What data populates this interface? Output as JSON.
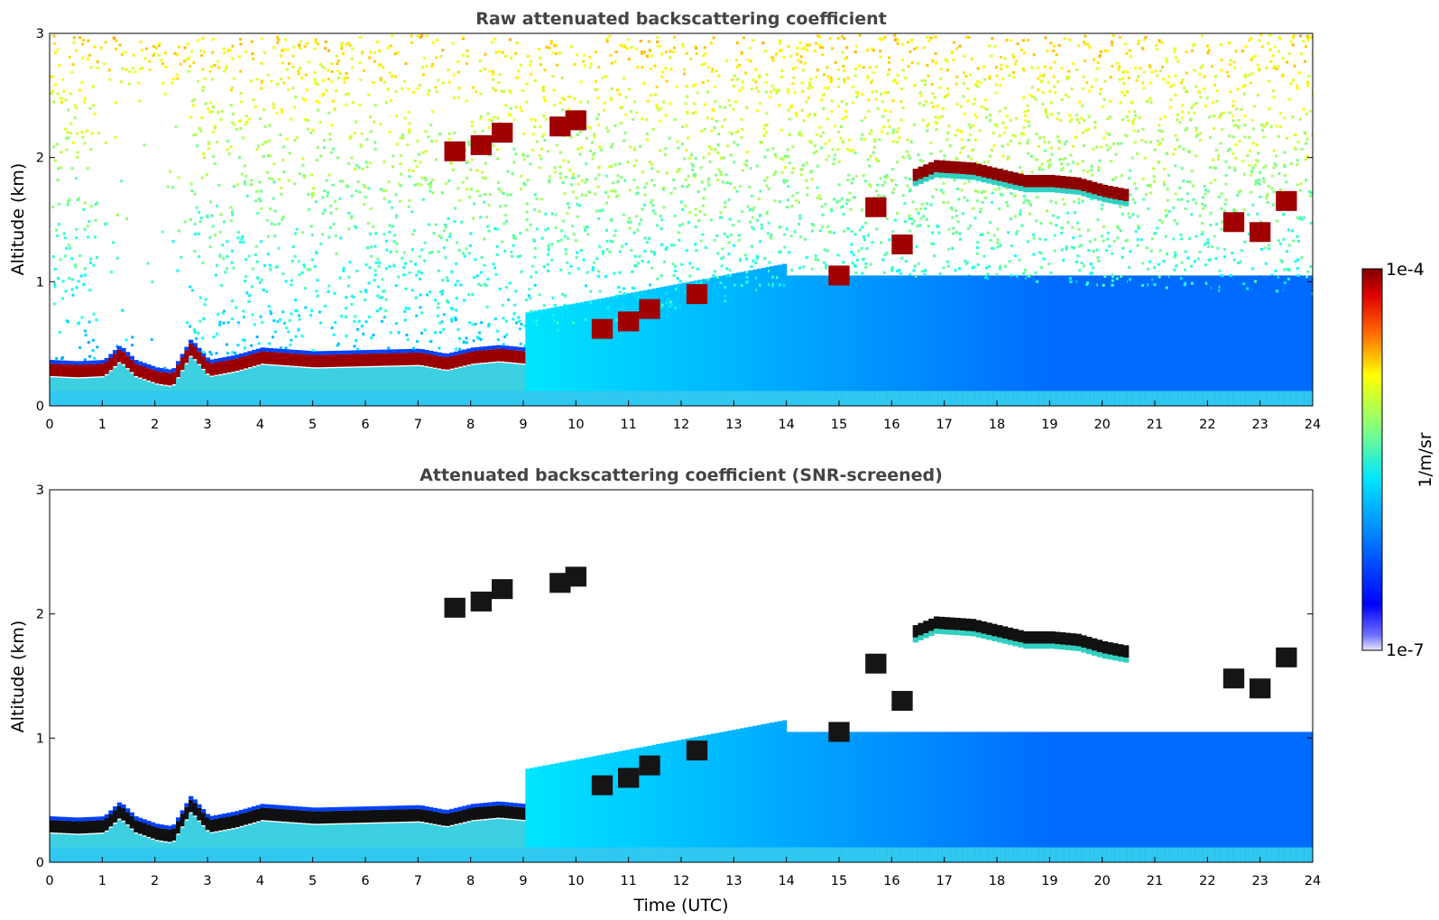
{
  "chart_data": [
    {
      "type": "heatmap",
      "title": "Raw attenuated backscattering coefficient",
      "xlabel": "",
      "ylabel": "Altitude (km)",
      "xlim": [
        0,
        24
      ],
      "ylim": [
        0,
        3
      ],
      "xticks": [
        "0",
        "1",
        "2",
        "3",
        "4",
        "5",
        "6",
        "7",
        "8",
        "9",
        "10",
        "11",
        "12",
        "13",
        "14",
        "15",
        "16",
        "17",
        "18",
        "19",
        "20",
        "21",
        "22",
        "23",
        "24"
      ],
      "yticks": [
        "0",
        "1",
        "2",
        "3"
      ],
      "layers": [
        {
          "feature": "boundary layer top (red, high backscatter)",
          "x": [
            0,
            0.5,
            1.0,
            1.3,
            1.6,
            2.0,
            2.3,
            2.65,
            3.0,
            3.5,
            4.0,
            5.0,
            6.0,
            7.0,
            7.5,
            8.0,
            8.5,
            9.0
          ],
          "y": [
            0.28,
            0.27,
            0.28,
            0.4,
            0.28,
            0.22,
            0.2,
            0.45,
            0.28,
            0.32,
            0.38,
            0.35,
            0.36,
            0.37,
            0.33,
            0.38,
            0.4,
            0.38
          ]
        },
        {
          "feature": "elevated cloud layer",
          "x": [
            16.4,
            16.8,
            17.5,
            18.0,
            18.5,
            19.0,
            19.5,
            20.0,
            20.5
          ],
          "y": [
            1.85,
            1.92,
            1.9,
            1.85,
            1.8,
            1.8,
            1.78,
            1.72,
            1.68
          ]
        },
        {
          "feature": "cloud patches",
          "x": [
            7.7,
            8.2,
            8.6,
            9.7,
            10.0,
            10.5,
            11.0,
            11.4,
            12.3,
            15.0,
            15.7,
            16.2,
            22.5,
            23.0,
            23.5
          ],
          "y": [
            2.05,
            2.1,
            2.2,
            2.25,
            2.3,
            0.62,
            0.68,
            0.78,
            0.9,
            1.05,
            1.6,
            1.3,
            1.48,
            1.4,
            1.65
          ]
        }
      ]
    },
    {
      "type": "heatmap",
      "title": "Attenuated backscattering coefficient (SNR-screened)",
      "xlabel": "Time (UTC)",
      "ylabel": "Altitude (km)",
      "xlim": [
        0,
        24
      ],
      "ylim": [
        0,
        3
      ],
      "xticks": [
        "0",
        "1",
        "2",
        "3",
        "4",
        "5",
        "6",
        "7",
        "8",
        "9",
        "10",
        "11",
        "12",
        "13",
        "14",
        "15",
        "16",
        "17",
        "18",
        "19",
        "20",
        "21",
        "22",
        "23",
        "24"
      ],
      "yticks": [
        "0",
        "1",
        "2",
        "3"
      ]
    }
  ],
  "colorbar": {
    "label": "1/m/sr",
    "max_label": "1e-4",
    "min_label": "1e-7",
    "colormap": "jet",
    "scale": "log"
  },
  "colors": {
    "low": "#0000ff",
    "mid": "#00c8ff",
    "high": "#800000",
    "background": "#ffffff"
  }
}
